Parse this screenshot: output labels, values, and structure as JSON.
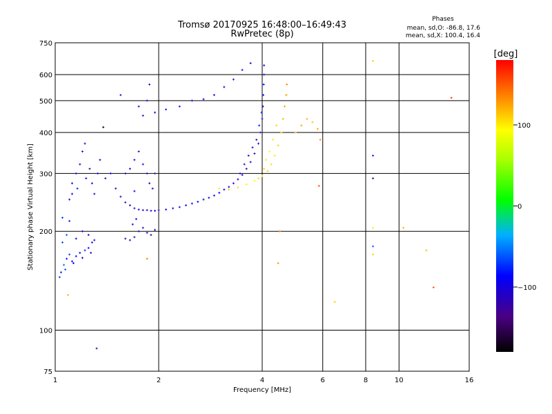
{
  "title": "Tromsø 20170925 16:48:00–16:49:43",
  "subtitle": "RwPretec (8p)",
  "phases_box": {
    "heading": "Phases",
    "line_o": "mean, sd,O: -86.8, 17.6",
    "line_x": "mean, sd,X: 100.4, 16.4"
  },
  "colorbar": {
    "label": "[deg]",
    "ticks": [
      {
        "value": 100,
        "label": "100"
      },
      {
        "value": 0,
        "label": "0"
      },
      {
        "value": -100,
        "label": "−100"
      }
    ],
    "range": [
      -180,
      180
    ]
  },
  "chart_data": {
    "type": "scatter",
    "title": "Tromsø 20170925 16:48:00–16:49:43",
    "subtitle": "RwPretec (8p)",
    "xlabel": "Frequency [MHz]",
    "ylabel": "Stationary phase Virtual Height [km]",
    "x_scale": "log",
    "y_scale": "log",
    "xlim": [
      1,
      16
    ],
    "ylim": [
      75,
      750
    ],
    "grid": true,
    "x_ticks": [
      {
        "value": 1,
        "label": "1"
      },
      {
        "value": 2,
        "label": "2"
      },
      {
        "value": 4,
        "label": "4"
      },
      {
        "value": 6,
        "label": "6"
      },
      {
        "value": 8,
        "label": "8"
      },
      {
        "value": 10,
        "label": "10"
      },
      {
        "value": 16,
        "label": "16"
      }
    ],
    "y_ticks": [
      {
        "value": 75,
        "label": "75"
      },
      {
        "value": 100,
        "label": "100"
      },
      {
        "value": 200,
        "label": "200"
      },
      {
        "value": 300,
        "label": "300"
      },
      {
        "value": 400,
        "label": "400"
      },
      {
        "value": 500,
        "label": "500"
      },
      {
        "value": 600,
        "label": "600"
      },
      {
        "value": 750,
        "label": "750"
      }
    ],
    "color_dimension": "phase [deg]",
    "points": [
      {
        "x": 1.04,
        "y": 150,
        "c": -80
      },
      {
        "x": 1.06,
        "y": 158,
        "c": -60
      },
      {
        "x": 1.08,
        "y": 165,
        "c": -90
      },
      {
        "x": 1.1,
        "y": 170,
        "c": -70
      },
      {
        "x": 1.12,
        "y": 162,
        "c": -100
      },
      {
        "x": 1.15,
        "y": 168,
        "c": -85
      },
      {
        "x": 1.18,
        "y": 172,
        "c": -95
      },
      {
        "x": 1.22,
        "y": 175,
        "c": -75
      },
      {
        "x": 1.25,
        "y": 178,
        "c": -90
      },
      {
        "x": 1.05,
        "y": 185,
        "c": -70
      },
      {
        "x": 1.08,
        "y": 195,
        "c": -60
      },
      {
        "x": 1.1,
        "y": 215,
        "c": -80
      },
      {
        "x": 1.05,
        "y": 220,
        "c": -70
      },
      {
        "x": 1.15,
        "y": 190,
        "c": -100
      },
      {
        "x": 1.2,
        "y": 200,
        "c": -90
      },
      {
        "x": 1.25,
        "y": 195,
        "c": -110
      },
      {
        "x": 1.28,
        "y": 185,
        "c": -100
      },
      {
        "x": 1.3,
        "y": 188,
        "c": -105
      },
      {
        "x": 1.03,
        "y": 145,
        "c": -70
      },
      {
        "x": 1.07,
        "y": 153,
        "c": -65
      },
      {
        "x": 1.13,
        "y": 160,
        "c": -88
      },
      {
        "x": 1.2,
        "y": 166,
        "c": -92
      },
      {
        "x": 1.27,
        "y": 172,
        "c": -100
      },
      {
        "x": 1.09,
        "y": 128,
        "c": 120
      },
      {
        "x": 1.1,
        "y": 250,
        "c": -110
      },
      {
        "x": 1.12,
        "y": 280,
        "c": -100
      },
      {
        "x": 1.15,
        "y": 300,
        "c": -95
      },
      {
        "x": 1.18,
        "y": 320,
        "c": -105
      },
      {
        "x": 1.2,
        "y": 350,
        "c": -110
      },
      {
        "x": 1.22,
        "y": 370,
        "c": -100
      },
      {
        "x": 1.12,
        "y": 260,
        "c": -90
      },
      {
        "x": 1.16,
        "y": 270,
        "c": -80
      },
      {
        "x": 1.23,
        "y": 290,
        "c": -95
      },
      {
        "x": 1.26,
        "y": 310,
        "c": -115
      },
      {
        "x": 1.28,
        "y": 280,
        "c": -100
      },
      {
        "x": 1.3,
        "y": 260,
        "c": -110
      },
      {
        "x": 1.33,
        "y": 300,
        "c": -100
      },
      {
        "x": 1.35,
        "y": 330,
        "c": -105
      },
      {
        "x": 1.38,
        "y": 415,
        "c": -170
      },
      {
        "x": 1.32,
        "y": 88,
        "c": -120
      },
      {
        "x": 1.4,
        "y": 290,
        "c": -110
      },
      {
        "x": 1.45,
        "y": 300,
        "c": -95
      },
      {
        "x": 1.5,
        "y": 270,
        "c": -110
      },
      {
        "x": 1.55,
        "y": 255,
        "c": -115
      },
      {
        "x": 1.6,
        "y": 245,
        "c": -110
      },
      {
        "x": 1.65,
        "y": 240,
        "c": -105
      },
      {
        "x": 1.7,
        "y": 235,
        "c": -110
      },
      {
        "x": 1.75,
        "y": 233,
        "c": -110
      },
      {
        "x": 1.8,
        "y": 232,
        "c": -110
      },
      {
        "x": 1.85,
        "y": 232,
        "c": -105
      },
      {
        "x": 1.9,
        "y": 231,
        "c": -110
      },
      {
        "x": 1.95,
        "y": 231,
        "c": -108
      },
      {
        "x": 2.0,
        "y": 232,
        "c": -105
      },
      {
        "x": 2.1,
        "y": 233,
        "c": -100
      },
      {
        "x": 2.2,
        "y": 235,
        "c": -100
      },
      {
        "x": 2.3,
        "y": 237,
        "c": -98
      },
      {
        "x": 2.4,
        "y": 240,
        "c": -95
      },
      {
        "x": 2.5,
        "y": 243,
        "c": -95
      },
      {
        "x": 2.6,
        "y": 246,
        "c": -90
      },
      {
        "x": 2.7,
        "y": 250,
        "c": -92
      },
      {
        "x": 2.8,
        "y": 253,
        "c": -90
      },
      {
        "x": 2.9,
        "y": 257,
        "c": -88
      },
      {
        "x": 3.0,
        "y": 262,
        "c": -85
      },
      {
        "x": 3.1,
        "y": 268,
        "c": -90
      },
      {
        "x": 3.2,
        "y": 273,
        "c": -95
      },
      {
        "x": 3.3,
        "y": 280,
        "c": -100
      },
      {
        "x": 3.4,
        "y": 288,
        "c": -105
      },
      {
        "x": 3.5,
        "y": 297,
        "c": -110
      },
      {
        "x": 3.6,
        "y": 310,
        "c": -110
      },
      {
        "x": 3.7,
        "y": 325,
        "c": -110
      },
      {
        "x": 3.8,
        "y": 345,
        "c": -110
      },
      {
        "x": 3.9,
        "y": 370,
        "c": -100
      },
      {
        "x": 3.95,
        "y": 400,
        "c": -100
      },
      {
        "x": 4.0,
        "y": 440,
        "c": -95
      },
      {
        "x": 4.02,
        "y": 480,
        "c": -90
      },
      {
        "x": 4.03,
        "y": 520,
        "c": -85
      },
      {
        "x": 4.04,
        "y": 560,
        "c": -90
      },
      {
        "x": 4.05,
        "y": 600,
        "c": -100
      },
      {
        "x": 4.05,
        "y": 640,
        "c": -110
      },
      {
        "x": 3.92,
        "y": 420,
        "c": -80
      },
      {
        "x": 3.98,
        "y": 460,
        "c": -70
      },
      {
        "x": 3.85,
        "y": 380,
        "c": -120
      },
      {
        "x": 3.75,
        "y": 360,
        "c": -105
      },
      {
        "x": 3.65,
        "y": 340,
        "c": -110
      },
      {
        "x": 3.55,
        "y": 320,
        "c": -115
      },
      {
        "x": 3.45,
        "y": 300,
        "c": -100
      },
      {
        "x": 1.6,
        "y": 300,
        "c": -100
      },
      {
        "x": 1.65,
        "y": 310,
        "c": -110
      },
      {
        "x": 1.7,
        "y": 330,
        "c": -105
      },
      {
        "x": 1.75,
        "y": 350,
        "c": -110
      },
      {
        "x": 1.8,
        "y": 320,
        "c": -100
      },
      {
        "x": 1.85,
        "y": 300,
        "c": -110
      },
      {
        "x": 1.88,
        "y": 280,
        "c": -105
      },
      {
        "x": 1.92,
        "y": 270,
        "c": -100
      },
      {
        "x": 1.95,
        "y": 300,
        "c": -110
      },
      {
        "x": 1.7,
        "y": 265,
        "c": -95
      },
      {
        "x": 1.6,
        "y": 190,
        "c": -120
      },
      {
        "x": 1.65,
        "y": 188,
        "c": -125
      },
      {
        "x": 1.7,
        "y": 192,
        "c": -120
      },
      {
        "x": 1.75,
        "y": 200,
        "c": -115
      },
      {
        "x": 1.8,
        "y": 205,
        "c": -110
      },
      {
        "x": 1.85,
        "y": 198,
        "c": -120
      },
      {
        "x": 1.9,
        "y": 195,
        "c": -115
      },
      {
        "x": 1.95,
        "y": 202,
        "c": -110
      },
      {
        "x": 1.72,
        "y": 218,
        "c": -105
      },
      {
        "x": 1.68,
        "y": 210,
        "c": -110
      },
      {
        "x": 1.85,
        "y": 165,
        "c": 140
      },
      {
        "x": 1.55,
        "y": 520,
        "c": -110
      },
      {
        "x": 1.75,
        "y": 480,
        "c": -100
      },
      {
        "x": 1.8,
        "y": 450,
        "c": -100
      },
      {
        "x": 1.85,
        "y": 500,
        "c": -95
      },
      {
        "x": 1.88,
        "y": 560,
        "c": -110
      },
      {
        "x": 1.95,
        "y": 460,
        "c": -105
      },
      {
        "x": 2.1,
        "y": 470,
        "c": -80
      },
      {
        "x": 2.3,
        "y": 480,
        "c": -95
      },
      {
        "x": 2.5,
        "y": 500,
        "c": -100
      },
      {
        "x": 2.7,
        "y": 505,
        "c": -95
      },
      {
        "x": 2.9,
        "y": 520,
        "c": -100
      },
      {
        "x": 3.1,
        "y": 550,
        "c": -105
      },
      {
        "x": 3.3,
        "y": 580,
        "c": -100
      },
      {
        "x": 3.5,
        "y": 620,
        "c": -110
      },
      {
        "x": 3.7,
        "y": 650,
        "c": -105
      },
      {
        "x": 3.0,
        "y": 270,
        "c": 100
      },
      {
        "x": 3.2,
        "y": 268,
        "c": 110
      },
      {
        "x": 3.4,
        "y": 272,
        "c": 105
      },
      {
        "x": 3.6,
        "y": 278,
        "c": 100
      },
      {
        "x": 3.8,
        "y": 285,
        "c": 95
      },
      {
        "x": 4.0,
        "y": 295,
        "c": 100
      },
      {
        "x": 4.15,
        "y": 305,
        "c": 110
      },
      {
        "x": 4.25,
        "y": 320,
        "c": 105
      },
      {
        "x": 4.35,
        "y": 340,
        "c": 100
      },
      {
        "x": 4.45,
        "y": 365,
        "c": 110
      },
      {
        "x": 4.55,
        "y": 400,
        "c": 115
      },
      {
        "x": 4.6,
        "y": 440,
        "c": 120
      },
      {
        "x": 4.65,
        "y": 480,
        "c": 125
      },
      {
        "x": 4.7,
        "y": 520,
        "c": 130
      },
      {
        "x": 4.72,
        "y": 560,
        "c": 135
      },
      {
        "x": 4.1,
        "y": 330,
        "c": 100
      },
      {
        "x": 4.2,
        "y": 350,
        "c": 95
      },
      {
        "x": 4.3,
        "y": 380,
        "c": 100
      },
      {
        "x": 4.4,
        "y": 420,
        "c": 110
      },
      {
        "x": 3.9,
        "y": 290,
        "c": 105
      },
      {
        "x": 4.05,
        "y": 310,
        "c": 110
      },
      {
        "x": 4.5,
        "y": 200,
        "c": 140
      },
      {
        "x": 4.45,
        "y": 160,
        "c": 130
      },
      {
        "x": 4.7,
        "y": 520,
        "c": 120
      },
      {
        "x": 5.0,
        "y": 400,
        "c": 120
      },
      {
        "x": 5.2,
        "y": 420,
        "c": 125
      },
      {
        "x": 5.4,
        "y": 440,
        "c": 120
      },
      {
        "x": 5.6,
        "y": 430,
        "c": 115
      },
      {
        "x": 5.8,
        "y": 410,
        "c": 125
      },
      {
        "x": 5.9,
        "y": 380,
        "c": 130
      },
      {
        "x": 5.85,
        "y": 275,
        "c": 150
      },
      {
        "x": 6.5,
        "y": 122,
        "c": 110
      },
      {
        "x": 8.4,
        "y": 660,
        "c": 110
      },
      {
        "x": 8.4,
        "y": 340,
        "c": -80
      },
      {
        "x": 8.4,
        "y": 290,
        "c": -140
      },
      {
        "x": 8.4,
        "y": 205,
        "c": 100
      },
      {
        "x": 8.4,
        "y": 180,
        "c": -60
      },
      {
        "x": 8.4,
        "y": 170,
        "c": 110
      },
      {
        "x": 10.3,
        "y": 205,
        "c": 120
      },
      {
        "x": 12.0,
        "y": 175,
        "c": 115
      },
      {
        "x": 12.6,
        "y": 135,
        "c": 150
      },
      {
        "x": 14.2,
        "y": 510,
        "c": 160
      }
    ]
  }
}
